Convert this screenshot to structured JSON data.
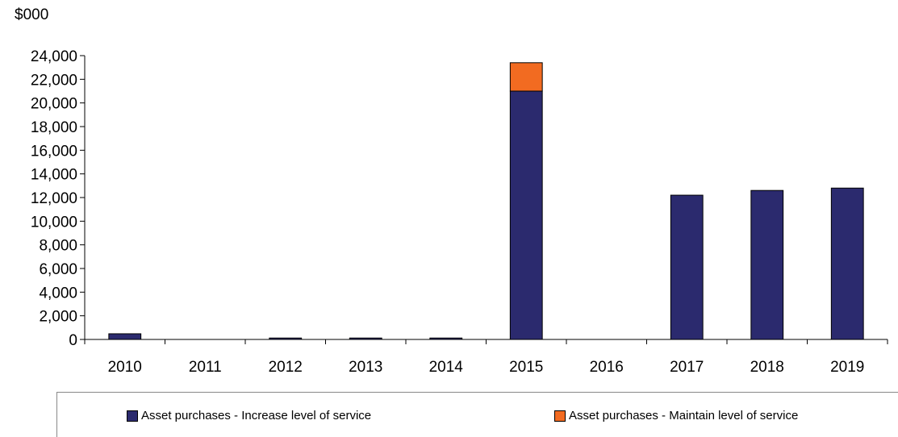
{
  "chart_data": {
    "type": "bar",
    "stacked": true,
    "unit_label": "$000",
    "categories": [
      "2010",
      "2011",
      "2012",
      "2013",
      "2014",
      "2015",
      "2016",
      "2017",
      "2018",
      "2019"
    ],
    "series": [
      {
        "name": "Asset purchases - Increase level of service",
        "color": "#2b2a6e",
        "values": [
          480,
          0,
          120,
          120,
          120,
          21000,
          0,
          12200,
          12600,
          12800
        ]
      },
      {
        "name": "Asset purchases - Maintain level of service",
        "color": "#f26b21",
        "values": [
          0,
          0,
          0,
          0,
          0,
          2400,
          0,
          0,
          0,
          0
        ]
      }
    ],
    "ylim": [
      0,
      24000
    ],
    "yticks": [
      "0",
      "2,000",
      "4,000",
      "6,000",
      "8,000",
      "10,000",
      "12,000",
      "14,000",
      "16,000",
      "18,000",
      "20,000",
      "22,000",
      "24,000"
    ],
    "legend_position": "bottom",
    "grid": false
  }
}
